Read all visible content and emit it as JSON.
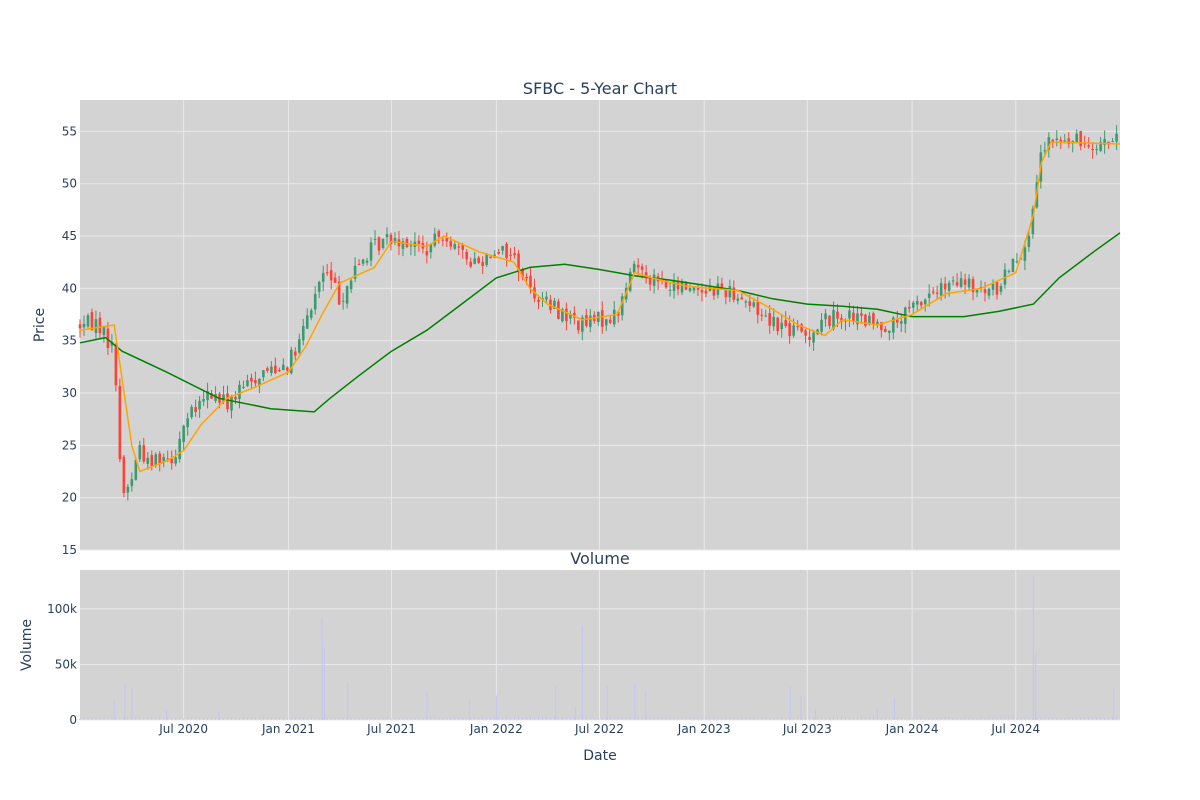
{
  "colors": {
    "plot_bg": "#d3d3d3",
    "grid": "#e9e9ee",
    "up": "#3d9970",
    "down": "#ff4136",
    "ma_short": "#ffa500",
    "ma_long": "#008000",
    "volume_bar": "#c6c6f0",
    "text": "#2a3f5f"
  },
  "chart_data": [
    {
      "type": "candlestick",
      "title": "SFBC - 5-Year Chart",
      "xlabel": "",
      "ylabel": "Price",
      "ylim": [
        15,
        58
      ],
      "yticks": [
        15,
        20,
        25,
        30,
        35,
        40,
        45,
        50,
        55
      ],
      "xrange": [
        "2020-01-01",
        "2024-12-31"
      ],
      "grid": true,
      "legend": "none",
      "anchors": [
        [
          "2020-01-01",
          36.5
        ],
        [
          "2020-02-01",
          36.8
        ],
        [
          "2020-03-01",
          34.0
        ],
        [
          "2020-03-15",
          20.0
        ],
        [
          "2020-04-01",
          22.0
        ],
        [
          "2020-04-15",
          25.0
        ],
        [
          "2020-05-01",
          23.0
        ],
        [
          "2020-05-15",
          24.0
        ],
        [
          "2020-06-15",
          24.0
        ],
        [
          "2020-07-01",
          27.0
        ],
        [
          "2020-08-01",
          29.0
        ],
        [
          "2020-08-15",
          30.0
        ],
        [
          "2020-09-15",
          29.0
        ],
        [
          "2020-10-15",
          30.5
        ],
        [
          "2020-11-15",
          32.0
        ],
        [
          "2021-01-01",
          33.0
        ],
        [
          "2021-01-15",
          34.0
        ],
        [
          "2021-02-15",
          39.0
        ],
        [
          "2021-03-01",
          41.5
        ],
        [
          "2021-03-15",
          41.0
        ],
        [
          "2021-04-01",
          39.0
        ],
        [
          "2021-05-01",
          42.0
        ],
        [
          "2021-06-01",
          44.0
        ],
        [
          "2021-07-01",
          45.0
        ],
        [
          "2021-08-01",
          44.5
        ],
        [
          "2021-09-01",
          43.5
        ],
        [
          "2021-10-01",
          45.5
        ],
        [
          "2021-11-01",
          43.0
        ],
        [
          "2021-12-01",
          42.5
        ],
        [
          "2022-01-01",
          44.0
        ],
        [
          "2022-02-01",
          43.0
        ],
        [
          "2022-03-01",
          40.0
        ],
        [
          "2022-04-01",
          38.5
        ],
        [
          "2022-05-01",
          37.5
        ],
        [
          "2022-06-01",
          36.5
        ],
        [
          "2022-07-01",
          37.0
        ],
        [
          "2022-08-01",
          37.5
        ],
        [
          "2022-09-01",
          42.5
        ],
        [
          "2022-10-01",
          41.0
        ],
        [
          "2022-11-01",
          40.0
        ],
        [
          "2022-12-01",
          40.2
        ],
        [
          "2023-01-01",
          40.0
        ],
        [
          "2023-02-01",
          40.0
        ],
        [
          "2023-03-01",
          39.5
        ],
        [
          "2023-04-01",
          38.0
        ],
        [
          "2023-05-01",
          37.0
        ],
        [
          "2023-06-01",
          36.0
        ],
        [
          "2023-07-01",
          35.5
        ],
        [
          "2023-08-01",
          37.0
        ],
        [
          "2023-09-01",
          37.5
        ],
        [
          "2023-10-01",
          37.0
        ],
        [
          "2023-11-01",
          36.5
        ],
        [
          "2023-12-01",
          36.5
        ],
        [
          "2024-01-01",
          38.0
        ],
        [
          "2024-02-01",
          39.5
        ],
        [
          "2024-03-01",
          40.0
        ],
        [
          "2024-04-01",
          40.5
        ],
        [
          "2024-05-01",
          39.5
        ],
        [
          "2024-06-01",
          40.0
        ],
        [
          "2024-06-15",
          42.0
        ],
        [
          "2024-07-01",
          43.0
        ],
        [
          "2024-07-15",
          44.0
        ],
        [
          "2024-08-01",
          47.0
        ],
        [
          "2024-08-15",
          53.0
        ],
        [
          "2024-09-01",
          54.0
        ],
        [
          "2024-10-01",
          54.0
        ],
        [
          "2024-11-01",
          54.0
        ],
        [
          "2024-12-31",
          54.0
        ]
      ],
      "ma_short": [
        [
          "2020-01-01",
          36.0
        ],
        [
          "2020-03-01",
          36.5
        ],
        [
          "2020-04-01",
          25.0
        ],
        [
          "2020-04-15",
          22.5
        ],
        [
          "2020-06-01",
          23.5
        ],
        [
          "2020-07-01",
          24.5
        ],
        [
          "2020-08-01",
          27.0
        ],
        [
          "2020-09-15",
          29.5
        ],
        [
          "2020-11-01",
          30.5
        ],
        [
          "2021-01-01",
          32.0
        ],
        [
          "2021-02-01",
          34.5
        ],
        [
          "2021-03-01",
          37.5
        ],
        [
          "2021-04-01",
          40.5
        ],
        [
          "2021-06-01",
          42.0
        ],
        [
          "2021-07-01",
          44.5
        ],
        [
          "2021-09-01",
          44.0
        ],
        [
          "2021-10-01",
          45.0
        ],
        [
          "2021-12-01",
          43.5
        ],
        [
          "2022-01-01",
          43.0
        ],
        [
          "2022-02-01",
          42.5
        ],
        [
          "2022-03-01",
          40.0
        ],
        [
          "2022-04-01",
          38.5
        ],
        [
          "2022-06-01",
          37.0
        ],
        [
          "2022-08-01",
          37.5
        ],
        [
          "2022-09-01",
          41.5
        ],
        [
          "2022-10-01",
          41.0
        ],
        [
          "2022-12-01",
          40.2
        ],
        [
          "2023-03-01",
          39.8
        ],
        [
          "2023-05-01",
          38.0
        ],
        [
          "2023-06-15",
          36.5
        ],
        [
          "2023-08-01",
          35.5
        ],
        [
          "2023-09-01",
          37.0
        ],
        [
          "2023-11-01",
          36.5
        ],
        [
          "2024-01-01",
          37.5
        ],
        [
          "2024-03-01",
          39.5
        ],
        [
          "2024-05-01",
          40.0
        ],
        [
          "2024-07-01",
          41.5
        ],
        [
          "2024-08-01",
          47.0
        ],
        [
          "2024-08-15",
          52.0
        ],
        [
          "2024-09-01",
          54.0
        ],
        [
          "2024-12-31",
          53.8
        ]
      ],
      "ma_long": [
        [
          "2020-01-01",
          34.8
        ],
        [
          "2020-02-15",
          35.3
        ],
        [
          "2020-03-15",
          34.0
        ],
        [
          "2020-06-01",
          32.0
        ],
        [
          "2020-09-01",
          29.5
        ],
        [
          "2020-12-01",
          28.5
        ],
        [
          "2021-02-15",
          28.2
        ],
        [
          "2021-03-15",
          29.5
        ],
        [
          "2021-05-01",
          31.5
        ],
        [
          "2021-07-01",
          34.0
        ],
        [
          "2021-09-01",
          36.0
        ],
        [
          "2021-11-01",
          38.5
        ],
        [
          "2022-01-01",
          41.0
        ],
        [
          "2022-03-01",
          42.0
        ],
        [
          "2022-05-01",
          42.3
        ],
        [
          "2022-07-01",
          41.8
        ],
        [
          "2022-09-01",
          41.2
        ],
        [
          "2022-11-01",
          40.8
        ],
        [
          "2023-01-01",
          40.3
        ],
        [
          "2023-03-01",
          39.8
        ],
        [
          "2023-05-01",
          39.0
        ],
        [
          "2023-07-01",
          38.5
        ],
        [
          "2023-09-01",
          38.3
        ],
        [
          "2023-11-01",
          38.0
        ],
        [
          "2024-01-01",
          37.3
        ],
        [
          "2024-04-01",
          37.3
        ],
        [
          "2024-06-01",
          37.8
        ],
        [
          "2024-08-01",
          38.5
        ],
        [
          "2024-09-15",
          41.0
        ],
        [
          "2024-11-15",
          43.5
        ],
        [
          "2024-12-31",
          45.3
        ]
      ]
    },
    {
      "type": "bar",
      "title": "Volume",
      "xlabel": "Date",
      "ylabel": "Volume",
      "ylim": [
        0,
        135000
      ],
      "yticks": [
        0,
        50000,
        100000
      ],
      "ytick_labels": [
        "0",
        "50k",
        "100k"
      ],
      "xticks": [
        "2020-07-01",
        "2021-01-01",
        "2021-07-01",
        "2022-01-01",
        "2022-07-01",
        "2023-01-01",
        "2023-07-01",
        "2024-01-01",
        "2024-07-01"
      ],
      "xtick_labels": [
        "Jul 2020",
        "Jan 2021",
        "Jul 2021",
        "Jan 2022",
        "Jul 2022",
        "Jan 2023",
        "Jul 2023",
        "Jan 2024",
        "Jul 2024"
      ],
      "grid": true,
      "legend": "none",
      "base_volume": 2500,
      "spikes": [
        [
          "2020-03-01",
          18000
        ],
        [
          "2020-03-20",
          32000
        ],
        [
          "2020-04-01",
          28000
        ],
        [
          "2020-06-01",
          9000
        ],
        [
          "2020-09-01",
          8000
        ],
        [
          "2021-03-01",
          92000
        ],
        [
          "2021-03-05",
          65000
        ],
        [
          "2021-04-15",
          35000
        ],
        [
          "2021-09-01",
          25000
        ],
        [
          "2021-11-15",
          18000
        ],
        [
          "2022-01-01",
          22000
        ],
        [
          "2022-04-15",
          30000
        ],
        [
          "2022-05-20",
          12000
        ],
        [
          "2022-06-01",
          85000
        ],
        [
          "2022-07-15",
          30000
        ],
        [
          "2022-09-01",
          33000
        ],
        [
          "2022-09-20",
          25000
        ],
        [
          "2023-06-01",
          30000
        ],
        [
          "2023-06-20",
          22000
        ],
        [
          "2023-07-15",
          10000
        ],
        [
          "2023-11-01",
          10000
        ],
        [
          "2023-12-01",
          20000
        ],
        [
          "2024-08-01",
          130000
        ],
        [
          "2024-08-05",
          60000
        ],
        [
          "2024-12-20",
          28000
        ]
      ]
    }
  ]
}
